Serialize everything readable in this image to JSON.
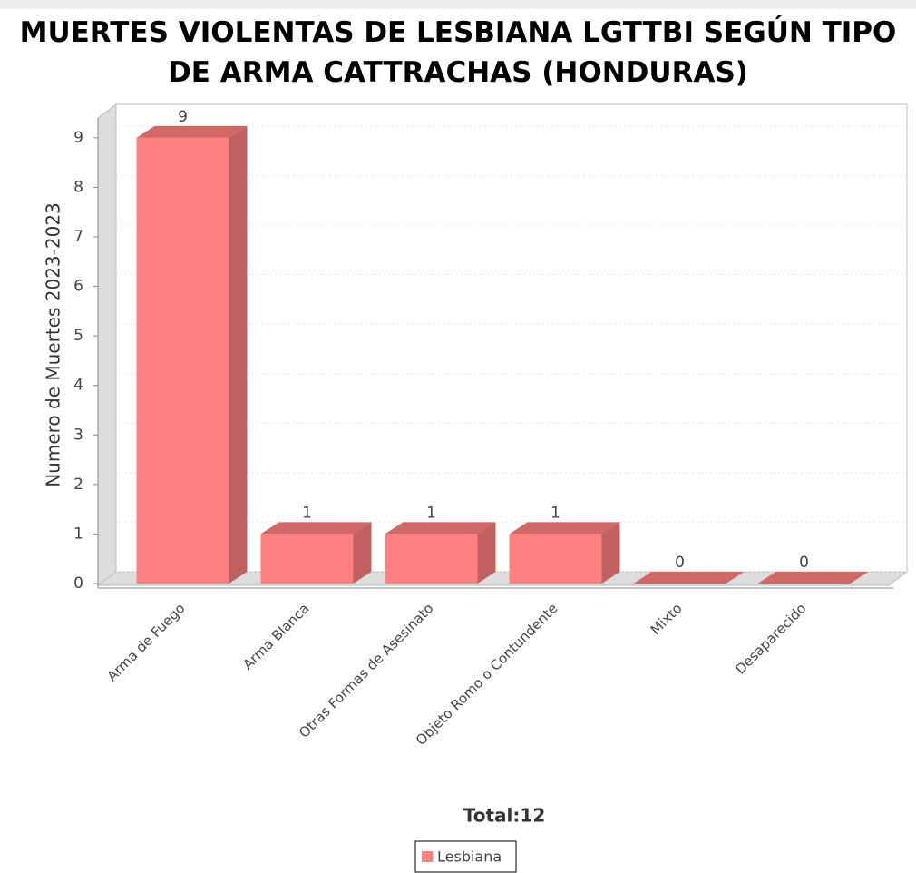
{
  "chart_data": {
    "type": "bar3d",
    "title": "MUERTES VIOLENTAS DE LESBIANA LGTTBI SEGÚN TIPO DE ARMA  CATTRACHAS (HONDURAS)",
    "subtitle": "Total:12",
    "y_label": "Numero de Muertes 2023-2023",
    "categories": [
      "Arma de Fuego",
      "Arma Blanca",
      "Otras Formas de Asesinato",
      "Objeto Romo o Contundente",
      "Mixto",
      "Desaparecido"
    ],
    "series": [
      {
        "name": "Lesbiana",
        "color": "#ff8080",
        "values": [
          9,
          1,
          1,
          1,
          0,
          0
        ]
      }
    ],
    "ylim": [
      0,
      9.4
    ],
    "yticks": [
      0,
      1,
      2,
      3,
      4,
      5,
      6,
      7,
      8,
      9
    ],
    "grid": true,
    "legend": "bottom"
  }
}
